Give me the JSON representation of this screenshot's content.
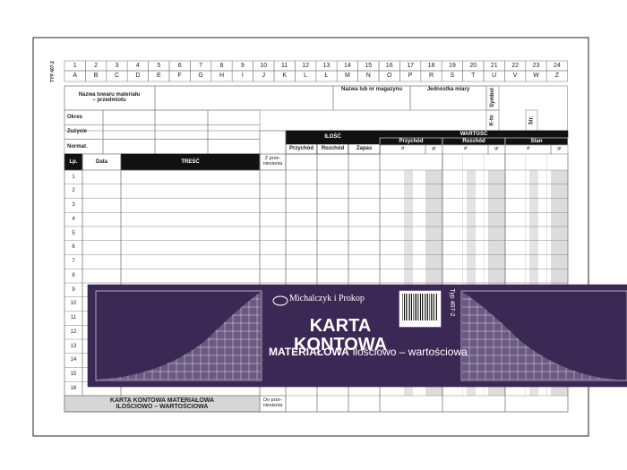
{
  "side_label": "TYP 407-2",
  "columns": {
    "numbers": [
      1,
      2,
      3,
      4,
      5,
      6,
      7,
      8,
      9,
      10,
      11,
      12,
      13,
      14,
      15,
      16,
      17,
      18,
      19,
      20,
      21,
      22,
      23,
      24
    ],
    "letters": [
      "A",
      "B",
      "C",
      "D",
      "E",
      "F",
      "G",
      "H",
      "I",
      "J",
      "K",
      "L",
      "Ł",
      "M",
      "N",
      "O",
      "P",
      "R",
      "S",
      "T",
      "U",
      "V",
      "W",
      "Z"
    ]
  },
  "header": {
    "item_name": "Nazwa towaru materiału – przedmiotu",
    "warehouse": "Nazwa lub nr magazynu",
    "unit": "Jednostka miary",
    "symbol": "Symbol",
    "account": "K-to",
    "page": "Str.",
    "rows": [
      "Okres",
      "Zużycie",
      "Normat."
    ]
  },
  "table": {
    "quantity": "ILOŚĆ",
    "value": "WARTOŚĆ",
    "quantity_cols": [
      "Przychód",
      "Rozchód",
      "Zapas"
    ],
    "value_cols": [
      "Przychód",
      "Rozchód",
      "Stan"
    ],
    "currency": [
      "zł",
      "gr"
    ],
    "lp": "Lp.",
    "date": "Data",
    "content": "TREŚĆ",
    "carried_in": "Z prze-niesienia",
    "row_numbers": [
      1,
      2,
      3,
      4,
      5,
      6,
      7,
      8,
      9,
      10,
      11,
      12,
      13,
      14,
      15,
      16
    ],
    "footer_title": "KARTA KONTOWA MATERIAŁOWA ILOŚCIOWO – WARTOŚCIOWA",
    "carried_out": "Do prze-niesienia"
  },
  "banner": {
    "brand": "Michalczyk i Prokop",
    "title": "KARTA KONTOWA",
    "subtitle_bold": "MATERIAŁOWA",
    "subtitle": "ilościowo – wartościowa",
    "type_code": "Typ 407-2"
  }
}
